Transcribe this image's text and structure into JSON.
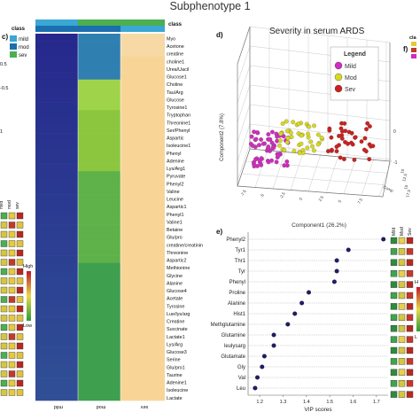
{
  "figure_title": "Subphenotype 1",
  "panel_c": {
    "panel_label": "c)",
    "class_label": "class",
    "class_legend": [
      {
        "label": "mild",
        "color": "#3aa7d4"
      },
      {
        "label": "mod",
        "color": "#1c6fae"
      },
      {
        "label": "sev",
        "color": "#4caf50"
      }
    ],
    "color_key": {
      "high": "High",
      "low": "Low"
    },
    "column_labels": [
      "mild",
      "mod",
      "sev"
    ],
    "side_ticks": [
      "0.5",
      "-0.5",
      "1"
    ],
    "metabolites": [
      "Myo",
      "Acetone",
      "creatine",
      "choline1",
      "Urea/Uacil",
      "Glucose1",
      "Choline",
      "Tau/Arg",
      "Glucose",
      "Tyrosine1",
      "Tryptophan",
      "Threonine1",
      "Ser/Phenyl",
      "Aspartic",
      "Isoleucine1",
      "Phenyl",
      "Adenine",
      "Lys/Arg1",
      "Pyruvate",
      "Phenyl2",
      "Valine",
      "Leucine",
      "Aspartic1",
      "Phenyl1",
      "Valine1",
      "Betaine",
      "Glu/pro",
      "creatine/creatinin",
      "Threonine",
      "Aspartic2",
      "Methionine",
      "Glycine",
      "Alanine",
      "Glucose4",
      "Acetate",
      "Tyrosine",
      "Lue/lys/arg",
      "Creatine",
      "Succinate",
      "Lactate1",
      "Lys/Arg",
      "Glucose3",
      "Serine",
      "Glu/pro1",
      "Taurine",
      "Adenine1",
      "Isoleucine",
      "Lactate"
    ]
  },
  "panel_d": {
    "panel_label": "d)",
    "title": "Severity in serum ARDS",
    "axis_label": "Component2 (7.8%)",
    "legend_title": "Legend",
    "legend": [
      {
        "label": "Mild",
        "color": "#d12bbf"
      },
      {
        "label": "Mod",
        "color": "#d8d820"
      },
      {
        "label": "Sev",
        "color": "#cc1f1f"
      }
    ],
    "ticks_left": [
      "-7.5",
      "-5",
      "-2.5",
      "0",
      "2.5",
      "5",
      "7.5"
    ],
    "ticks_right_z": [
      "0",
      "-1"
    ],
    "ticks_depth": [
      "10",
      "12.5",
      "15",
      "17.5"
    ],
    "ticks_top": [
      "Comp"
    ]
  },
  "panel_e": {
    "panel_label": "e)",
    "title": "Component1 (26.2%)",
    "col_labels": [
      "Mild",
      "Mod",
      "Sev"
    ]
  },
  "panel_f": {
    "panel_label": "f)",
    "class_label": "cla",
    "col_labels": [
      "Mild",
      "Mod",
      "Sev"
    ],
    "scale_labels": [
      "H",
      "L"
    ]
  },
  "chart_data": {
    "type": "scatter",
    "title": "",
    "xlabel": "VIP scores",
    "ylabel": "",
    "xlim": [
      1.15,
      1.75
    ],
    "x_ticks": [
      1.2,
      1.3,
      1.4,
      1.5,
      1.6,
      1.7
    ],
    "categories": [
      "Phenyl2",
      "Tyr1",
      "Thr1",
      "Tyr",
      "Phenyl",
      "Proline",
      "Alanine",
      "Hist1",
      "Methglutamine",
      "Glutamine",
      "leulysarg",
      "Glutamate",
      "Gly",
      "Val",
      "Leu"
    ],
    "values": [
      1.73,
      1.58,
      1.53,
      1.53,
      1.52,
      1.41,
      1.38,
      1.35,
      1.32,
      1.26,
      1.26,
      1.22,
      1.21,
      1.19,
      1.18
    ],
    "grid": true
  },
  "colors": {
    "mild": "#3aa7d4",
    "mod": "#1c6fae",
    "sev": "#4caf50",
    "dot": "#1f1f5e"
  }
}
